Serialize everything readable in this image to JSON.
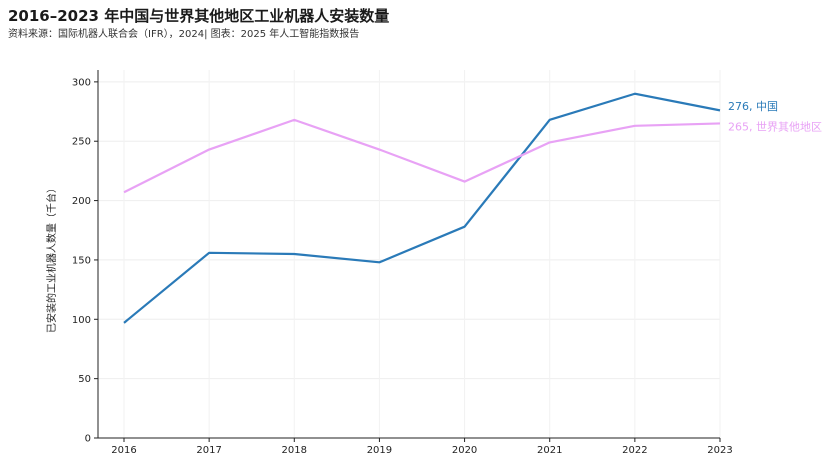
{
  "title": "2016–2023 年中国与世界其他地区工业机器人安装数量",
  "subtitle": "资料来源：国际机器人联合会（IFR），2024| 图表：2025 年人工智能指数报告",
  "chart_data": {
    "type": "line",
    "title": "2016–2023 年中国与世界其他地区工业机器人安装数量",
    "xlabel": "",
    "ylabel": "已安装的工业机器人数量（千台）",
    "categories": [
      "2016",
      "2017",
      "2018",
      "2019",
      "2020",
      "2021",
      "2022",
      "2023"
    ],
    "ylim": [
      0,
      310
    ],
    "yticks": [
      0,
      50,
      100,
      150,
      200,
      250,
      300
    ],
    "series": [
      {
        "name": "中国",
        "values": [
          97,
          156,
          155,
          148,
          178,
          268,
          290,
          276
        ],
        "color": "#2a7ab8",
        "end_label": "276, 中国"
      },
      {
        "name": "世界其他地区",
        "values": [
          207,
          243,
          268,
          243,
          216,
          249,
          263,
          265
        ],
        "color": "#e8a2f5",
        "end_label": "265, 世界其他地区"
      }
    ],
    "grid": true,
    "legend": "end-of-line labels"
  }
}
